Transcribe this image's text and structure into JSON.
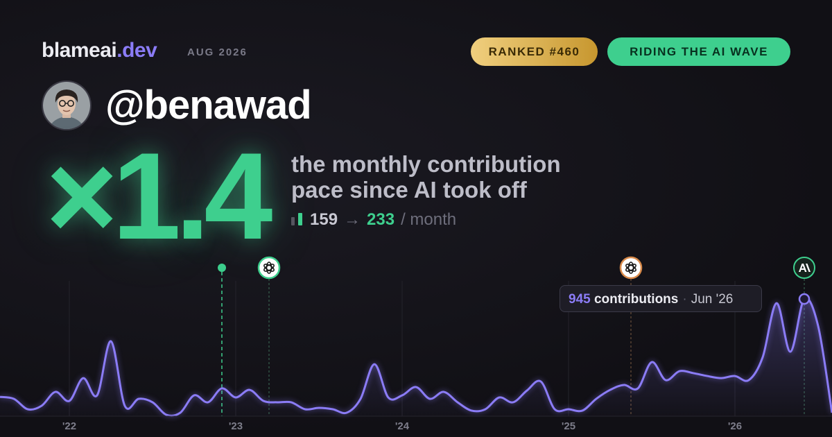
{
  "header": {
    "brand": "blameai",
    "brand_tld": ".dev",
    "date": "AUG 2026",
    "rank_badge": "RANKED #460",
    "status_badge": "RIDING THE AI WAVE"
  },
  "profile": {
    "handle": "@benawad"
  },
  "headline": {
    "multiplier": "×1.4",
    "caption_line1": "the monthly contribution",
    "caption_line2": "pace since AI took off",
    "before": "159",
    "arrow": "→",
    "after": "233",
    "unit": "/ month"
  },
  "chart_data": {
    "type": "area",
    "categories": [
      null,
      null,
      null,
      null,
      null,
      "'22",
      null,
      null,
      null,
      null,
      null,
      null,
      null,
      null,
      null,
      null,
      null,
      "'23",
      null,
      null,
      null,
      null,
      null,
      null,
      null,
      null,
      null,
      null,
      null,
      "'24",
      null,
      null,
      null,
      null,
      null,
      null,
      null,
      null,
      null,
      null,
      null,
      "'25",
      null,
      null,
      null,
      null,
      null,
      null,
      null,
      null,
      null,
      null,
      null,
      "'26",
      null,
      null,
      null,
      null,
      null,
      null,
      null
    ],
    "series": [
      {
        "name": "contributions",
        "color": "#8b7cf6",
        "values": [
          156,
          140,
          56,
          84,
          196,
          123,
          307,
          168,
          604,
          84,
          140,
          112,
          11,
          28,
          168,
          112,
          224,
          151,
          212,
          123,
          112,
          112,
          56,
          67,
          56,
          28,
          140,
          419,
          151,
          168,
          235,
          140,
          196,
          112,
          45,
          56,
          151,
          112,
          207,
          280,
          56,
          56,
          45,
          140,
          212,
          252,
          224,
          436,
          291,
          363,
          347,
          324,
          307,
          324,
          291,
          475,
          911,
          520,
          945,
          727,
          28
        ]
      }
    ],
    "tooltip": {
      "index": 58,
      "label": "contributions",
      "separator": "·",
      "date": "Jun '26"
    }
  }
}
